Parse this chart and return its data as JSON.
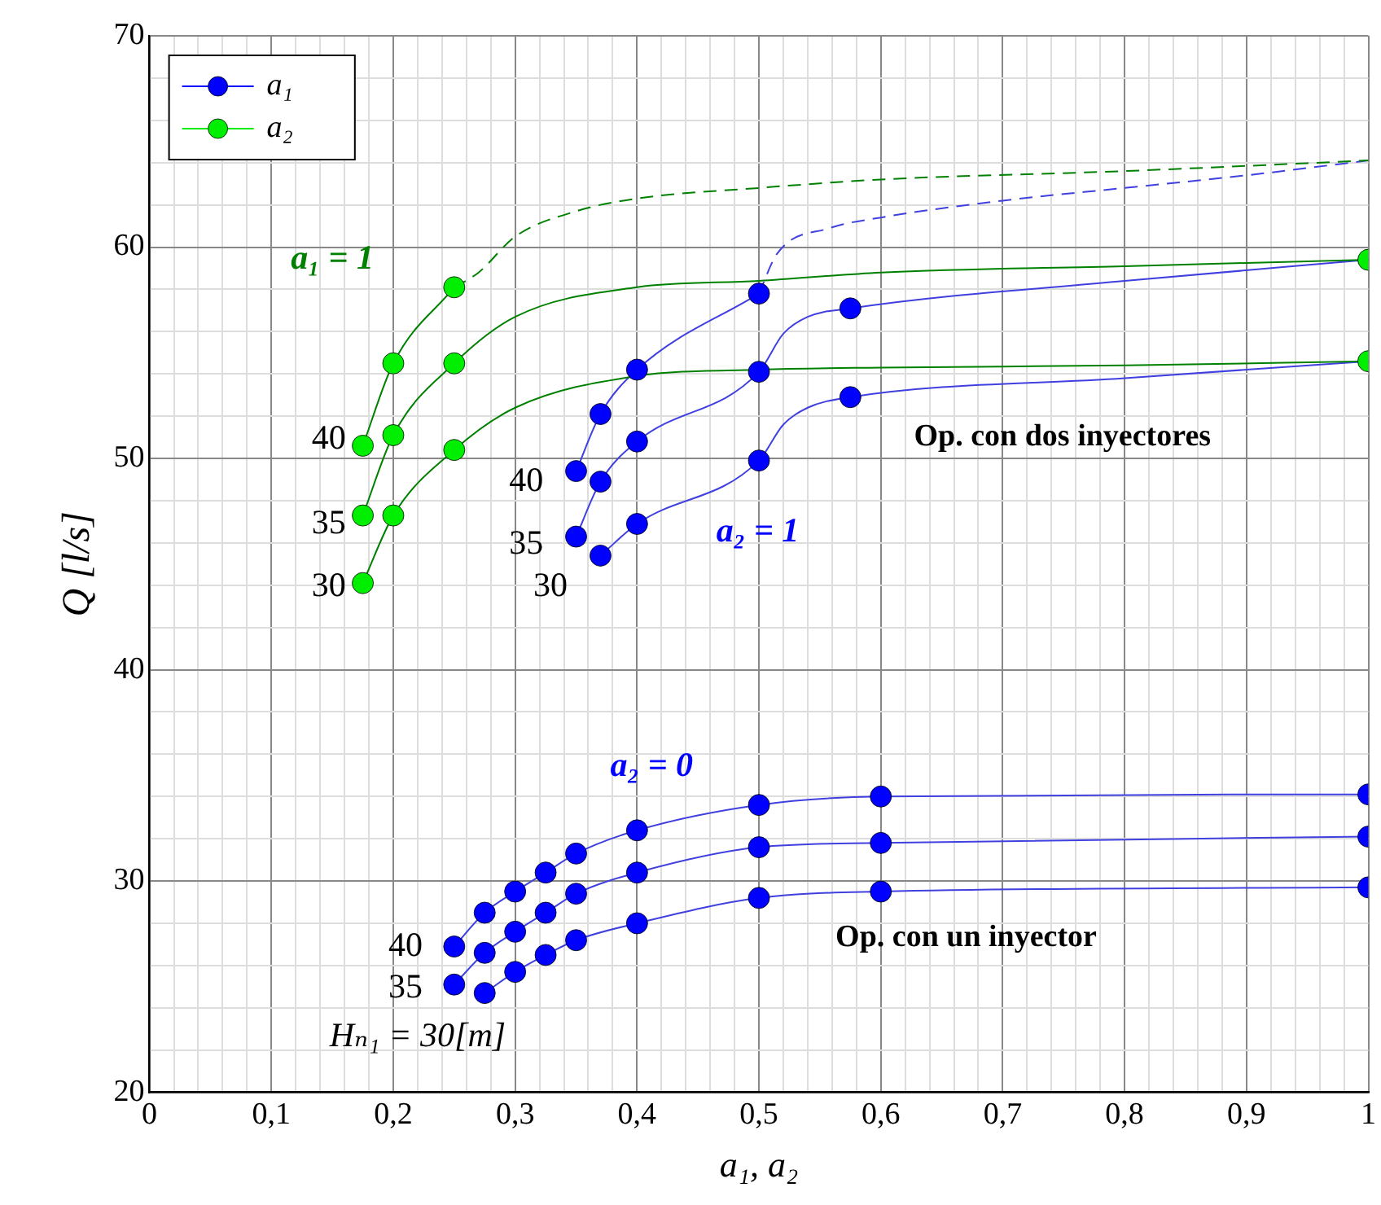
{
  "chart_data": {
    "type": "line",
    "xlabel": "a₁, a₂",
    "ylabel": "Q [l/s]",
    "xlim": [
      0,
      1
    ],
    "ylim": [
      20,
      70
    ],
    "xticks": [
      0,
      {
        "value": 0.02,
        "label": null
      },
      {
        "value": 0.04,
        "label": null
      },
      {
        "value": 0.06,
        "label": null
      },
      {
        "value": 0.08,
        "label": null
      },
      {
        "value": 0.1,
        "label": "0,1"
      },
      {
        "value": 0.12,
        "label": null
      },
      {
        "value": 0.14,
        "label": null
      },
      {
        "value": 0.16,
        "label": null
      },
      {
        "value": 0.18,
        "label": null
      },
      {
        "value": 0.2,
        "label": "0,2"
      },
      {
        "value": 0.22,
        "label": null
      },
      {
        "value": 0.24,
        "label": null
      },
      {
        "value": 0.26,
        "label": null
      },
      {
        "value": 0.28,
        "label": null
      },
      {
        "value": 0.3,
        "label": "0,3"
      },
      {
        "value": 0.32,
        "label": null
      },
      {
        "value": 0.34,
        "label": null
      },
      {
        "value": 0.36,
        "label": null
      },
      {
        "value": 0.38,
        "label": null
      },
      {
        "value": 0.4,
        "label": "0,4"
      },
      {
        "value": 0.42,
        "label": null
      },
      {
        "value": 0.44,
        "label": null
      },
      {
        "value": 0.46,
        "label": null
      },
      {
        "value": 0.48,
        "label": null
      },
      {
        "value": 0.5,
        "label": "0,5"
      },
      {
        "value": 0.52,
        "label": null
      },
      {
        "value": 0.54,
        "label": null
      },
      {
        "value": 0.56,
        "label": null
      },
      {
        "value": 0.58,
        "label": null
      },
      {
        "value": 0.6,
        "label": "0,6"
      },
      {
        "value": 0.62,
        "label": null
      },
      {
        "value": 0.64,
        "label": null
      },
      {
        "value": 0.66,
        "label": null
      },
      {
        "value": 0.68,
        "label": null
      },
      {
        "value": 0.7,
        "label": "0,7"
      },
      {
        "value": 0.72,
        "label": null
      },
      {
        "value": 0.74,
        "label": null
      },
      {
        "value": 0.76,
        "label": null
      },
      {
        "value": 0.78,
        "label": null
      },
      {
        "value": 0.8,
        "label": "0,8"
      },
      {
        "value": 0.82,
        "label": null
      },
      {
        "value": 0.84,
        "label": null
      },
      {
        "value": 0.86,
        "label": null
      },
      {
        "value": 0.88,
        "label": null
      },
      {
        "value": 0.9,
        "label": "0,9"
      },
      {
        "value": 0.92,
        "label": null
      },
      {
        "value": 0.94,
        "label": null
      },
      {
        "value": 0.96,
        "label": null
      },
      {
        "value": 0.98,
        "label": null
      },
      1
    ],
    "yticks": [
      20,
      {
        "value": 22,
        "label": null
      },
      {
        "value": 24,
        "label": null
      },
      {
        "value": 26,
        "label": null
      },
      {
        "value": 28,
        "label": null
      },
      30,
      {
        "value": 32,
        "label": null
      },
      {
        "value": 34,
        "label": null
      },
      {
        "value": 36,
        "label": null
      },
      {
        "value": 38,
        "label": null
      },
      40,
      {
        "value": 42,
        "label": null
      },
      {
        "value": 44,
        "label": null
      },
      {
        "value": 46,
        "label": null
      },
      {
        "value": 48,
        "label": null
      },
      50,
      {
        "value": 52,
        "label": null
      },
      {
        "value": 54,
        "label": null
      },
      {
        "value": 56,
        "label": null
      },
      {
        "value": 58,
        "label": null
      },
      60,
      {
        "value": 62,
        "label": null
      },
      {
        "value": 64,
        "label": null
      },
      {
        "value": 66,
        "label": null
      },
      {
        "value": 68,
        "label": null
      },
      70
    ],
    "grid": true,
    "legend": "top left",
    "series": [
      {
        "color": "#4040e0",
        "marker": "none",
        "line_style": "solid",
        "x": [
          0.35,
          0.37,
          0.4,
          0.5
        ],
        "values": [
          49.4,
          52.1,
          54.2,
          57.8
        ]
      },
      {
        "color": "#4040e0",
        "marker": "none",
        "line_style": "dashed",
        "x": [
          0.5,
          0.515,
          0.558,
          0.6,
          0.7,
          0.8,
          0.9,
          1
        ],
        "values": [
          57.8,
          59.7,
          60.9,
          61.4,
          62.2,
          62.8,
          63.4,
          64.1
        ]
      },
      {
        "color": "#4040e0",
        "marker": "none",
        "line_style": "solid",
        "x": [
          0.35,
          0.37,
          0.4,
          0.5,
          0.52,
          0.54,
          0.575,
          0.8,
          1
        ],
        "values": [
          46.3,
          48.9,
          50.8,
          54.1,
          55.9,
          56.7,
          57.1,
          58.4,
          59.4
        ]
      },
      {
        "color": "#4040e0",
        "marker": "none",
        "line_style": "solid",
        "x": [
          0.37,
          0.4,
          0.5,
          0.52,
          0.54,
          0.575,
          0.8,
          1
        ],
        "values": [
          45.4,
          46.9,
          49.9,
          51.6,
          52.4,
          52.9,
          53.8,
          54.6
        ]
      },
      {
        "color": "#4040e0",
        "marker": "none",
        "line_style": "solid",
        "x": [
          0.25,
          0.275,
          0.3,
          0.325,
          0.35,
          0.4,
          0.5,
          0.6,
          1
        ],
        "values": [
          26.9,
          28.5,
          29.5,
          30.4,
          31.3,
          32.4,
          33.6,
          34.0,
          34.1
        ]
      },
      {
        "color": "#4040e0",
        "marker": "none",
        "line_style": "solid",
        "x": [
          0.25,
          0.275,
          0.3,
          0.325,
          0.35,
          0.4,
          0.5,
          0.6,
          1
        ],
        "values": [
          25.1,
          26.6,
          27.6,
          28.5,
          29.4,
          30.4,
          31.6,
          31.8,
          32.1
        ]
      },
      {
        "color": "#4040e0",
        "marker": "none",
        "line_style": "solid",
        "x": [
          0.275,
          0.3,
          0.325,
          0.35,
          0.4,
          0.5,
          0.6,
          1
        ],
        "values": [
          24.7,
          25.7,
          26.5,
          27.2,
          28.0,
          29.2,
          29.5,
          29.7
        ]
      },
      {
        "color": "#008000",
        "marker": "none",
        "line_style": "solid",
        "x": [
          0.175,
          0.2,
          0.25
        ],
        "values": [
          50.6,
          54.5,
          58.1
        ]
      },
      {
        "color": "#008000",
        "marker": "none",
        "line_style": "dashed",
        "x": [
          0.25,
          0.27,
          0.3,
          0.35,
          0.4,
          0.5,
          0.6,
          0.8,
          1
        ],
        "values": [
          58.1,
          58.8,
          60.5,
          61.7,
          62.3,
          62.8,
          63.2,
          63.6,
          64.1
        ]
      },
      {
        "color": "#008000",
        "marker": "none",
        "line_style": "solid",
        "x": [
          0.175,
          0.2,
          0.25,
          0.3,
          0.4,
          0.5,
          0.6,
          0.8,
          1
        ],
        "values": [
          47.3,
          51.1,
          54.5,
          56.7,
          58.1,
          58.4,
          58.8,
          59.1,
          59.4
        ]
      },
      {
        "color": "#008000",
        "marker": "none",
        "line_style": "solid",
        "x": [
          0.175,
          0.2,
          0.25,
          0.3,
          0.4,
          0.5,
          0.6,
          0.8,
          1
        ],
        "values": [
          44.1,
          47.3,
          50.4,
          52.4,
          53.9,
          54.2,
          54.3,
          54.4,
          54.6
        ]
      },
      {
        "type": "scatter",
        "name": "a₁",
        "color": "#0000ff",
        "marker": "circle",
        "x": [
          0.35,
          0.37,
          0.4,
          0.5,
          0.35,
          0.37,
          0.4,
          0.5,
          0.575,
          0.37,
          0.4,
          0.5,
          0.575,
          0.25,
          0.275,
          0.3,
          0.325,
          0.35,
          0.4,
          0.5,
          0.6,
          1,
          0.25,
          0.275,
          0.3,
          0.325,
          0.35,
          0.4,
          0.5,
          0.6,
          1,
          0.275,
          0.3,
          0.325,
          0.35,
          0.4,
          0.5,
          0.6,
          1
        ],
        "values": [
          49.4,
          52.1,
          54.2,
          57.8,
          46.3,
          48.9,
          50.8,
          54.1,
          57.1,
          45.4,
          46.9,
          49.9,
          52.9,
          26.9,
          28.5,
          29.5,
          30.4,
          31.3,
          32.4,
          33.6,
          34.0,
          34.1,
          25.1,
          26.6,
          27.6,
          28.5,
          29.4,
          30.4,
          31.6,
          31.8,
          32.1,
          24.7,
          25.7,
          26.5,
          27.2,
          28.0,
          29.2,
          29.5,
          29.7
        ]
      },
      {
        "type": "scatter",
        "name": "a₂",
        "color": "#00ee00",
        "marker": "circle",
        "x": [
          0.175,
          0.2,
          0.25,
          0.175,
          0.2,
          0.25,
          0.175,
          0.2,
          0.25,
          1,
          1
        ],
        "values": [
          50.6,
          54.5,
          58.1,
          47.3,
          51.1,
          54.5,
          44.1,
          47.3,
          50.4,
          59.4,
          54.6
        ]
      }
    ],
    "annotations": [
      "a₁ = 1",
      "40",
      "35",
      "30",
      "40",
      "35",
      "30",
      "a₂ = 1",
      "Op. con dos inyectores",
      "a₂ = 0",
      "40",
      "35",
      "Op. con un inyector",
      "Hₙ₁ = 30[m]"
    ]
  }
}
